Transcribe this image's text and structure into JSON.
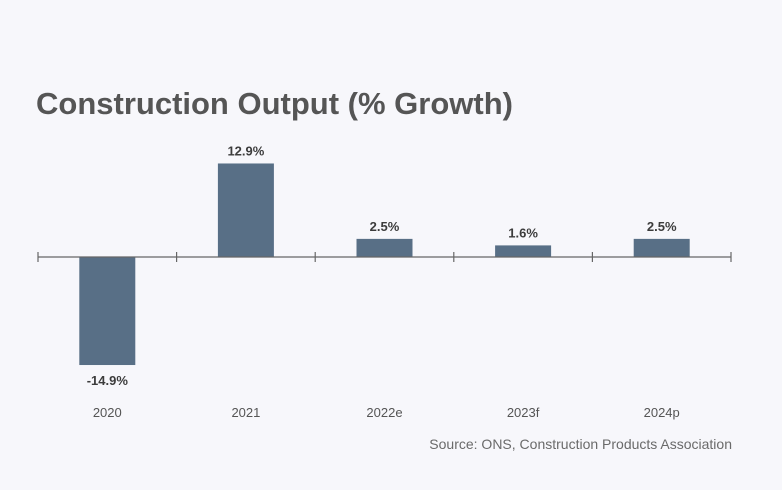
{
  "chart_data": {
    "type": "bar",
    "title": "Construction Output (% Growth)",
    "categories": [
      "2020",
      "2021",
      "2022e",
      "2023f",
      "2024p"
    ],
    "values": [
      -14.9,
      12.9,
      2.5,
      1.6,
      2.5
    ],
    "value_labels": [
      "-14.9%",
      "12.9%",
      "2.5%",
      "1.6%",
      "2.5%"
    ],
    "xlabel": "",
    "ylabel": "",
    "grid": false,
    "bar_color": "#586f86",
    "source": "Source: ONS, Construction Products Association"
  }
}
